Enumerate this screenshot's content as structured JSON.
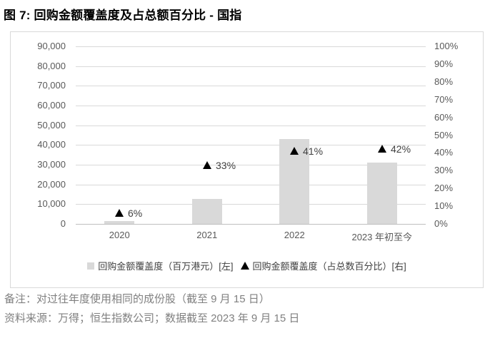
{
  "title": "图 7:  回购金额覆盖度及占总额百分比  -  国指",
  "chart_data": {
    "type": "bar",
    "title": "回购金额覆盖度及占总额百分比 - 国指",
    "categories": [
      "2020",
      "2021",
      "2022",
      "2023 年初至今"
    ],
    "series": [
      {
        "name": "回购金额覆盖度（百万港元）[左]",
        "type": "bar",
        "axis": "left",
        "color": "#d9d9d9",
        "values": [
          1300,
          12800,
          43000,
          31200
        ]
      },
      {
        "name": "回购金额覆盖度（占总数百分比）[右]",
        "type": "scatter-triangle",
        "axis": "right",
        "color": "#000000",
        "values": [
          6,
          33,
          41,
          42
        ],
        "point_labels": [
          "6%",
          "33%",
          "41%",
          "42%"
        ]
      }
    ],
    "left_axis": {
      "min": 0,
      "max": 90000,
      "step": 10000,
      "tick_labels": [
        "90,000",
        "80,000",
        "70,000",
        "60,000",
        "50,000",
        "40,000",
        "30,000",
        "20,000",
        "10,000",
        "0"
      ]
    },
    "right_axis": {
      "min": 0,
      "max": 100,
      "step": 10,
      "tick_labels": [
        "100%",
        "90%",
        "80%",
        "70%",
        "60%",
        "50%",
        "40%",
        "30%",
        "20%",
        "10%",
        "0%"
      ]
    },
    "grid": true,
    "legend_position": "bottom",
    "colors": {
      "bar": "#d9d9d9",
      "marker": "#000000",
      "gridline": "#d9d9d9",
      "axis_line": "#bfbfbf",
      "tick_text": "#595959",
      "data_label_text": "#404040"
    }
  },
  "footer": {
    "note": "备注：对过往年度使用相同的成份股（截至 9 月 15 日）",
    "source": "资料来源：万得；恒生指数公司；数据截至 2023 年 9 月 15 日"
  }
}
